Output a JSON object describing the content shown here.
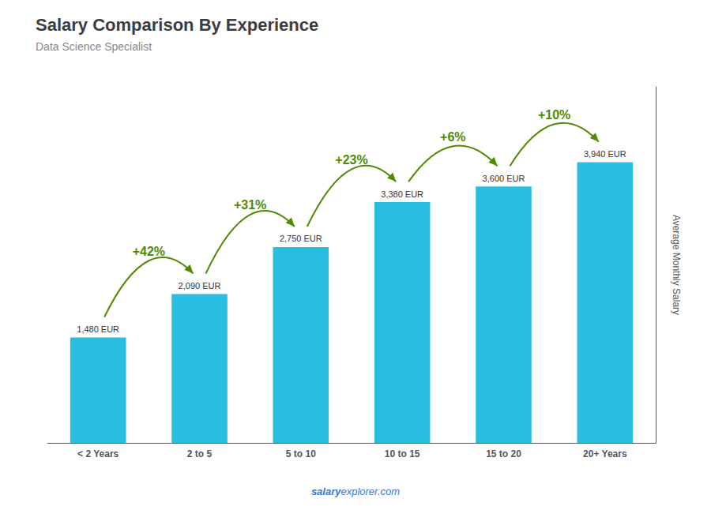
{
  "chart_data": {
    "type": "bar",
    "title": "Salary Comparison By Experience",
    "subtitle": "Data Science Specialist",
    "ylabel": "Average Monthly Salary",
    "categories": [
      "< 2 Years",
      "2 to 5",
      "5 to 10",
      "10 to 15",
      "15 to 20",
      "20+ Years"
    ],
    "values": [
      1480,
      2090,
      2750,
      3380,
      3600,
      3940
    ],
    "value_labels": [
      "1,480 EUR",
      "2,090 EUR",
      "2,750 EUR",
      "3,380 EUR",
      "3,600 EUR",
      "3,940 EUR"
    ],
    "data_labels": true,
    "color": "#29bde0",
    "annotations": [
      "+42%",
      "+31%",
      "+23%",
      "+6%",
      "+10%"
    ],
    "watermark": [
      "salary",
      "explorer.com"
    ],
    "ylim": [
      0,
      5000
    ],
    "tick_labels": "x",
    "grid": false
  }
}
